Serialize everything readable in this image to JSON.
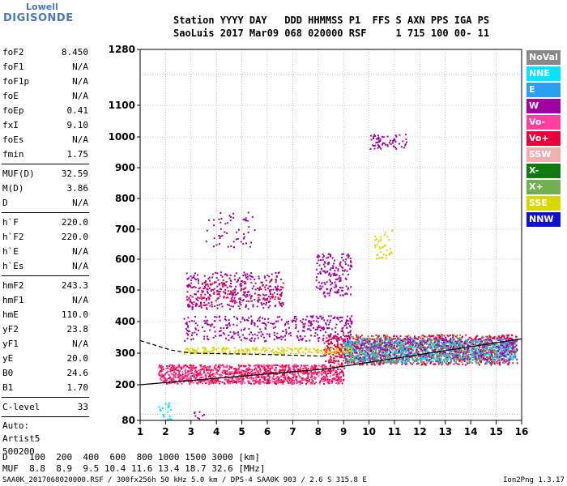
{
  "logo": {
    "top": "Lowell",
    "bottom": "DIGISONDE"
  },
  "header": {
    "line1": "Station YYYY DAY   DDD HHMMSS P1  FFS S AXN PPS IGA PS",
    "line2": "SaoLuis 2017 Mar09 068 020000 RSF     1 715 100 00- 11"
  },
  "params_group1": [
    {
      "label": "foF2",
      "value": "8.450"
    },
    {
      "label": "foF1",
      "value": "N/A"
    },
    {
      "label": "foF1p",
      "value": "N/A"
    },
    {
      "label": "foE",
      "value": "N/A"
    },
    {
      "label": "foEp",
      "value": "0.41"
    },
    {
      "label": "fxI",
      "value": "9.10"
    },
    {
      "label": "foEs",
      "value": "N/A"
    },
    {
      "label": "fmin",
      "value": "1.75"
    }
  ],
  "params_group2": [
    {
      "label": "MUF(D)",
      "value": "32.59"
    },
    {
      "label": "M(D)",
      "value": "3.86"
    },
    {
      "label": "D",
      "value": "N/A"
    }
  ],
  "params_group3": [
    {
      "label": "h`F",
      "value": "220.0"
    },
    {
      "label": "h`F2",
      "value": "220.0"
    },
    {
      "label": "h`E",
      "value": "N/A"
    },
    {
      "label": "h`Es",
      "value": "N/A"
    }
  ],
  "params_group4": [
    {
      "label": "hmF2",
      "value": "243.3"
    },
    {
      "label": "hmF1",
      "value": "N/A"
    },
    {
      "label": "hmE",
      "value": "110.0"
    },
    {
      "label": "yF2",
      "value": "23.8"
    },
    {
      "label": "yF1",
      "value": "N/A"
    },
    {
      "label": "yE",
      "value": "20.0"
    },
    {
      "label": "B0",
      "value": "24.6"
    },
    {
      "label": "B1",
      "value": "1.70"
    }
  ],
  "clevel": {
    "label": "C-level",
    "value": "33"
  },
  "auto": [
    "Auto:",
    "Artist5",
    "500200"
  ],
  "legend": [
    {
      "label": "NoVal",
      "color": "#888888"
    },
    {
      "label": "NNE",
      "color": "#00e5ff"
    },
    {
      "label": "E",
      "color": "#2aa0f0"
    },
    {
      "label": "W",
      "color": "#a000a0"
    },
    {
      "label": "Vo-",
      "color": "#ff3fa0"
    },
    {
      "label": "Vo+",
      "color": "#e8003a"
    },
    {
      "label": "SSW",
      "color": "#f0b0b0"
    },
    {
      "label": "X-",
      "color": "#107a10"
    },
    {
      "label": "X+",
      "color": "#70b050"
    },
    {
      "label": "SSE",
      "color": "#d8d800"
    },
    {
      "label": "NNW",
      "color": "#1010d0"
    }
  ],
  "mufrow": {
    "d_line": "D    100  200  400  600  800 1000 1500 3000 [km]",
    "muf_line": "MUF  8.8  8.9  9.5 10.4 11.6 13.4 18.7 32.6 [MHz]"
  },
  "footer": {
    "left": "SAA0K_2017068020000.RSF / 300fx256h 50 kHz 5.0 km / DPS-4 SAA0K 903 / 2.6 S 315.8 E",
    "right": "Ion2Png 1.3.17"
  },
  "chart_data": {
    "type": "scatter",
    "xlim": [
      1,
      16
    ],
    "ylim": [
      80,
      1280
    ],
    "x_ticks": [
      "1",
      "2",
      "3",
      "4",
      "5",
      "6",
      "7",
      "8",
      "9",
      "10",
      "11",
      "12",
      "13",
      "14",
      "15",
      "16"
    ],
    "y_ticks": [
      {
        "label": "1280",
        "v": 1280
      },
      {
        "label": "1100",
        "v": 1100
      },
      {
        "label": "1000",
        "v": 1000
      },
      {
        "label": "900",
        "v": 900
      },
      {
        "label": "800",
        "v": 800
      },
      {
        "label": "700",
        "v": 700
      },
      {
        "label": "600",
        "v": 600
      },
      {
        "label": "500",
        "v": 500
      },
      {
        "label": "400",
        "v": 400
      },
      {
        "label": "300",
        "v": 300
      },
      {
        "label": "200",
        "v": 200
      },
      {
        "label": "80",
        "v": 80
      }
    ],
    "y_scale": "compressed-high",
    "grid": true,
    "regions": [
      {
        "x": [
          1.7,
          9.0
        ],
        "y": [
          205,
          265
        ],
        "color": "#e8003a",
        "density": 0.9
      },
      {
        "x": [
          1.7,
          9.0
        ],
        "y": [
          205,
          265
        ],
        "color": "#ff3fa0",
        "density": 0.5
      },
      {
        "x": [
          8.2,
          15.8
        ],
        "y": [
          265,
          360
        ],
        "color": "#e8003a",
        "density": 0.8
      },
      {
        "x": [
          9.0,
          15.8
        ],
        "y": [
          280,
          340
        ],
        "color": "#00e5ff",
        "density": 0.6
      },
      {
        "x": [
          9.0,
          15.8
        ],
        "y": [
          270,
          350
        ],
        "color": "#2aa0f0",
        "density": 0.5
      },
      {
        "x": [
          9.0,
          15.8
        ],
        "y": [
          280,
          350
        ],
        "color": "#a000a0",
        "density": 0.4
      },
      {
        "x": [
          9.0,
          15.0
        ],
        "y": [
          270,
          360
        ],
        "color": "#70b050",
        "density": 0.3
      },
      {
        "x": [
          2.7,
          9.3
        ],
        "y": [
          300,
          320
        ],
        "color": "#d8d800",
        "density": 0.8
      },
      {
        "x": [
          2.7,
          9.3
        ],
        "y": [
          340,
          420
        ],
        "color": "#a000a0",
        "density": 0.3
      },
      {
        "x": [
          2.8,
          6.6
        ],
        "y": [
          440,
          560
        ],
        "color": "#a000a0",
        "density": 0.35
      },
      {
        "x": [
          2.8,
          6.6
        ],
        "y": [
          450,
          540
        ],
        "color": "#e8003a",
        "density": 0.2
      },
      {
        "x": [
          7.9,
          9.3
        ],
        "y": [
          480,
          620
        ],
        "color": "#a000a0",
        "density": 0.45
      },
      {
        "x": [
          7.0,
          9.3
        ],
        "y": [
          380,
          420
        ],
        "color": "#a000a0",
        "density": 0.35
      },
      {
        "x": [
          3.5,
          5.5
        ],
        "y": [
          640,
          760
        ],
        "color": "#a000a0",
        "density": 0.12
      },
      {
        "x": [
          10.0,
          11.5
        ],
        "y": [
          960,
          1010
        ],
        "color": "#a000a0",
        "density": 0.45
      },
      {
        "x": [
          10.2,
          10.9
        ],
        "y": [
          600,
          700
        ],
        "color": "#d8d800",
        "density": 0.3
      },
      {
        "x": [
          1.7,
          2.2
        ],
        "y": [
          85,
          140
        ],
        "color": "#00e5ff",
        "density": 0.4
      },
      {
        "x": [
          3.0,
          3.5
        ],
        "y": [
          85,
          115
        ],
        "color": "#a000a0",
        "density": 0.3
      }
    ],
    "curves": [
      {
        "name": "trace-lower",
        "points": [
          [
            1,
            200
          ],
          [
            8.3,
            250
          ],
          [
            16,
            345
          ]
        ],
        "style": "solid"
      },
      {
        "name": "trace-upper",
        "points": [
          [
            1,
            340
          ],
          [
            2.2,
            310
          ],
          [
            3.0,
            300
          ],
          [
            6,
            296
          ],
          [
            8.3,
            290
          ]
        ],
        "style": "dashed"
      }
    ]
  }
}
